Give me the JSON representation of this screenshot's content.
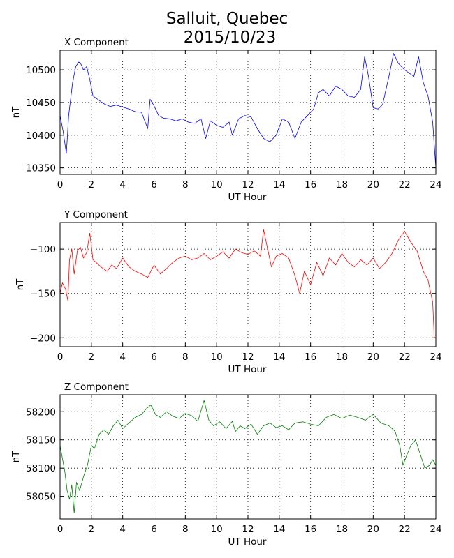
{
  "figure": {
    "title_line1": "Salluit, Quebec",
    "title_line2": "2015/10/23"
  },
  "chart_data": [
    {
      "type": "line",
      "title": "X Component",
      "xlabel": "UT Hour",
      "ylabel": "nT",
      "xlim": [
        0,
        24
      ],
      "ylim": [
        10340,
        10530
      ],
      "xticks": [
        0,
        2,
        4,
        6,
        8,
        10,
        12,
        14,
        16,
        18,
        20,
        22,
        24
      ],
      "yticks": [
        10350,
        10400,
        10450,
        10500
      ],
      "grid": true,
      "color": "#0000ff",
      "x": [
        0,
        0.2,
        0.4,
        0.55,
        0.8,
        1.0,
        1.2,
        1.35,
        1.5,
        1.7,
        1.9,
        2.1,
        2.4,
        2.8,
        3.2,
        3.6,
        4.0,
        4.4,
        4.8,
        5.2,
        5.6,
        5.75,
        6.0,
        6.3,
        6.6,
        7.0,
        7.4,
        7.8,
        8.2,
        8.6,
        9.0,
        9.3,
        9.6,
        10.0,
        10.4,
        10.8,
        11.0,
        11.4,
        11.8,
        12.2,
        12.6,
        13.0,
        13.4,
        13.8,
        14.2,
        14.6,
        15.0,
        15.4,
        15.8,
        16.2,
        16.5,
        16.8,
        17.2,
        17.6,
        18.0,
        18.4,
        18.8,
        19.2,
        19.45,
        19.7,
        20.0,
        20.3,
        20.6,
        21.0,
        21.3,
        21.6,
        22.0,
        22.3,
        22.6,
        22.9,
        23.2,
        23.5,
        23.8,
        24.0
      ],
      "y": [
        10430,
        10405,
        10372,
        10430,
        10480,
        10505,
        10512,
        10508,
        10500,
        10505,
        10485,
        10460,
        10455,
        10448,
        10444,
        10446,
        10443,
        10440,
        10436,
        10435,
        10410,
        10455,
        10445,
        10430,
        10426,
        10425,
        10422,
        10425,
        10420,
        10418,
        10425,
        10395,
        10422,
        10415,
        10412,
        10420,
        10400,
        10425,
        10430,
        10428,
        10410,
        10395,
        10390,
        10400,
        10425,
        10420,
        10395,
        10420,
        10430,
        10440,
        10465,
        10470,
        10460,
        10475,
        10470,
        10460,
        10458,
        10470,
        10520,
        10490,
        10442,
        10440,
        10447,
        10490,
        10525,
        10510,
        10500,
        10495,
        10490,
        10520,
        10480,
        10460,
        10420,
        10350
      ]
    },
    {
      "type": "line",
      "title": "Y Component",
      "xlabel": "UT Hour",
      "ylabel": "nT",
      "xlim": [
        0,
        24
      ],
      "ylim": [
        -210,
        -70
      ],
      "xticks": [
        0,
        2,
        4,
        6,
        8,
        10,
        12,
        14,
        16,
        18,
        20,
        22,
        24
      ],
      "yticks": [
        -200,
        -150,
        -100
      ],
      "grid": true,
      "color": "#ff0000",
      "x": [
        0,
        0.15,
        0.35,
        0.5,
        0.6,
        0.75,
        0.9,
        1.1,
        1.3,
        1.5,
        1.7,
        1.9,
        2.1,
        2.3,
        2.6,
        3.0,
        3.3,
        3.6,
        4.0,
        4.4,
        4.8,
        5.2,
        5.6,
        6.0,
        6.4,
        6.8,
        7.2,
        7.6,
        8.0,
        8.4,
        8.8,
        9.2,
        9.6,
        10.0,
        10.4,
        10.8,
        11.2,
        11.6,
        12.0,
        12.4,
        12.8,
        13.0,
        13.2,
        13.5,
        13.8,
        14.2,
        14.6,
        15.0,
        15.3,
        15.6,
        16.0,
        16.4,
        16.8,
        17.2,
        17.6,
        18.0,
        18.4,
        18.8,
        19.2,
        19.6,
        20.0,
        20.4,
        20.8,
        21.2,
        21.6,
        22.0,
        22.4,
        22.8,
        23.2,
        23.5,
        23.8,
        23.9
      ],
      "y": [
        -150,
        -138,
        -145,
        -158,
        -112,
        -100,
        -128,
        -102,
        -98,
        -110,
        -104,
        -82,
        -112,
        -115,
        -120,
        -125,
        -118,
        -122,
        -110,
        -120,
        -125,
        -128,
        -132,
        -118,
        -128,
        -122,
        -115,
        -110,
        -108,
        -112,
        -110,
        -105,
        -112,
        -108,
        -103,
        -110,
        -100,
        -104,
        -106,
        -102,
        -108,
        -78,
        -95,
        -120,
        -108,
        -105,
        -110,
        -130,
        -150,
        -125,
        -140,
        -115,
        -130,
        -110,
        -118,
        -105,
        -115,
        -120,
        -112,
        -118,
        -110,
        -122,
        -115,
        -105,
        -90,
        -80,
        -92,
        -102,
        -125,
        -135,
        -160,
        -200
      ]
    },
    {
      "type": "line",
      "title": "Z Component",
      "xlabel": "UT Hour",
      "ylabel": "nT",
      "xlim": [
        0,
        24
      ],
      "ylim": [
        58010,
        58230
      ],
      "xticks": [
        0,
        2,
        4,
        6,
        8,
        10,
        12,
        14,
        16,
        18,
        20,
        22,
        24
      ],
      "yticks": [
        58050,
        58100,
        58150,
        58200
      ],
      "grid": true,
      "color": "#008000",
      "x": [
        0,
        0.1,
        0.3,
        0.45,
        0.6,
        0.75,
        0.9,
        1.05,
        1.25,
        1.5,
        1.75,
        2.0,
        2.2,
        2.5,
        2.8,
        3.1,
        3.4,
        3.7,
        4.0,
        4.4,
        4.8,
        5.2,
        5.5,
        5.8,
        6.1,
        6.4,
        6.8,
        7.2,
        7.6,
        8.0,
        8.4,
        8.8,
        9.2,
        9.5,
        9.8,
        10.2,
        10.6,
        11.0,
        11.2,
        11.5,
        11.8,
        12.2,
        12.6,
        13.0,
        13.4,
        13.8,
        14.2,
        14.6,
        15.0,
        15.5,
        16.0,
        16.5,
        17.0,
        17.5,
        18.0,
        18.5,
        19.0,
        19.5,
        20.0,
        20.5,
        21.0,
        21.4,
        21.7,
        21.9,
        22.1,
        22.4,
        22.7,
        23.0,
        23.3,
        23.6,
        23.8,
        24.0
      ],
      "y": [
        58140,
        58125,
        58095,
        58060,
        58045,
        58070,
        58020,
        58075,
        58060,
        58085,
        58105,
        58140,
        58135,
        58160,
        58168,
        58160,
        58175,
        58185,
        58170,
        58180,
        58190,
        58195,
        58205,
        58212,
        58195,
        58190,
        58200,
        58192,
        58188,
        58197,
        58193,
        58183,
        58220,
        58185,
        58175,
        58182,
        58170,
        58183,
        58165,
        58175,
        58170,
        58178,
        58160,
        58175,
        58180,
        58172,
        58175,
        58168,
        58180,
        58182,
        58178,
        58175,
        58190,
        58195,
        58188,
        58194,
        58190,
        58185,
        58195,
        58180,
        58175,
        58165,
        58140,
        58105,
        58120,
        58140,
        58150,
        58125,
        58100,
        58105,
        58115,
        58105
      ]
    }
  ]
}
